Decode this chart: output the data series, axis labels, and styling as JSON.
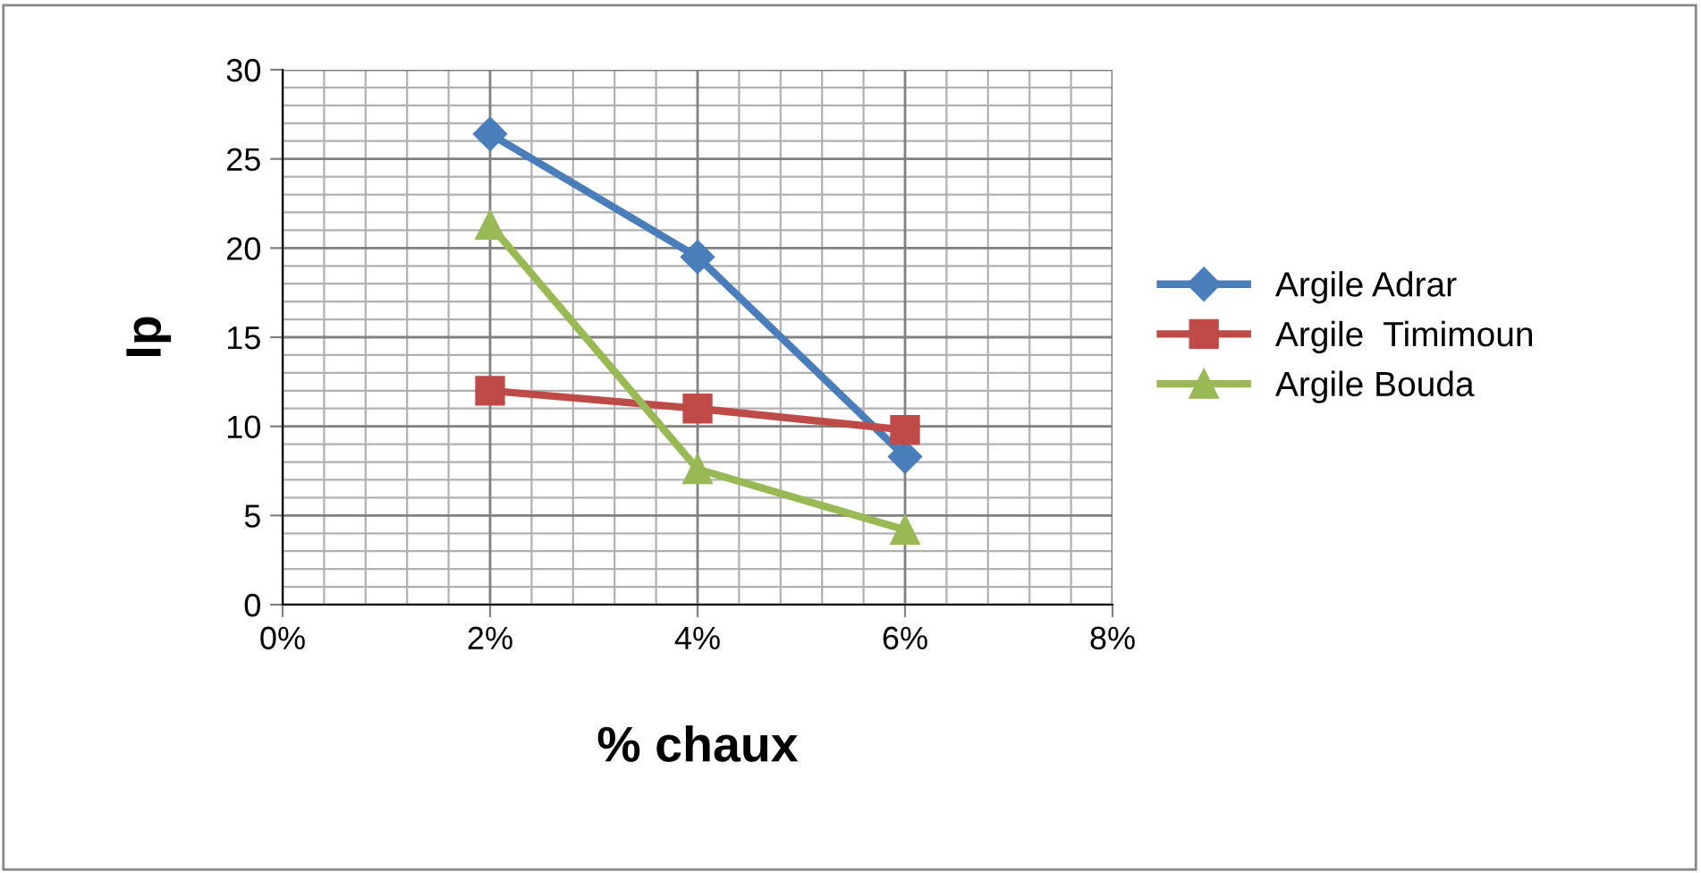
{
  "chart_data": {
    "type": "line",
    "xlabel": "% chaux",
    "ylabel": "Ip",
    "x": [
      0.02,
      0.04,
      0.06
    ],
    "series": [
      {
        "name": "Argile Adrar",
        "color": "#4a7ebb",
        "values": [
          26.4,
          19.5,
          8.3
        ],
        "marker": "diamond"
      },
      {
        "name": "Argile  Timimoun",
        "color": "#be4b48",
        "values": [
          12,
          11,
          9.8
        ],
        "marker": "square"
      },
      {
        "name": "Argile Bouda",
        "color": "#98b954",
        "values": [
          21.3,
          7.6,
          4.2
        ],
        "marker": "triangle"
      }
    ],
    "xlim": [
      0,
      0.08
    ],
    "xticks": [
      {
        "value": 0,
        "label": "0%"
      },
      {
        "value": 0.02,
        "label": "2%"
      },
      {
        "value": 0.04,
        "label": "4%"
      },
      {
        "value": 0.06,
        "label": "6%"
      },
      {
        "value": 0.08,
        "label": "8%"
      }
    ],
    "ylim": [
      0,
      30
    ],
    "yticks": [
      0,
      5,
      10,
      15,
      20,
      25,
      30
    ],
    "grid": true,
    "legend": "right",
    "line_style": "solid"
  }
}
